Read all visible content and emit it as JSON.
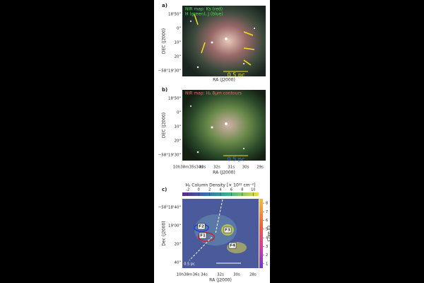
{
  "panels": [
    {
      "label": "a)",
      "notes": [
        "NIR map: Ks (red)",
        "H (green), J (blue)"
      ],
      "y_label": "DEC (J2000)",
      "y_ticks": [
        "18'50\"",
        "0\"",
        "10\"",
        "20\"",
        "−58°19'30\""
      ],
      "x_label": "RA (J2000)",
      "scale_bar": "0.5 pc"
    },
    {
      "label": "b)",
      "notes": [
        "NIR map: H₂ 8μm contours"
      ],
      "y_label": "DEC (J2000)",
      "y_ticks": [
        "18'50\"",
        "0\"",
        "10\"",
        "20\"",
        "−58°19'30\""
      ],
      "x_label": "RA (J2000)",
      "x_ticks": [
        "10h38m35s34s",
        "33s",
        "32s",
        "31s",
        "30s",
        "29s"
      ],
      "scale_bar": "0.5 pc"
    },
    {
      "label": "c)",
      "colorbar_label": "H₂ Column Density [× 10²² cm⁻²]",
      "colorbar_lim": [
        -3,
        11
      ],
      "colorbar_ticks": [
        -2,
        0,
        2,
        4,
        6,
        8,
        10
      ],
      "side_label": "Core ID",
      "side_lim": [
        0.5,
        8.5
      ],
      "side_ticks": [
        1,
        2,
        3,
        4,
        5,
        6,
        7,
        8
      ],
      "y_label": "Dec (J2000)",
      "y_ticks": [
        "−58°18'40\"",
        "19'00\"",
        "20\"",
        "40\""
      ],
      "x_label": "RA (J2000)",
      "x_ticks": [
        "10h38m36s",
        "34s",
        "32s",
        "30s",
        "28s"
      ],
      "filaments": [
        "F1",
        "F2",
        "F3",
        "F4"
      ],
      "scale_bar": "0.5 pc"
    }
  ]
}
